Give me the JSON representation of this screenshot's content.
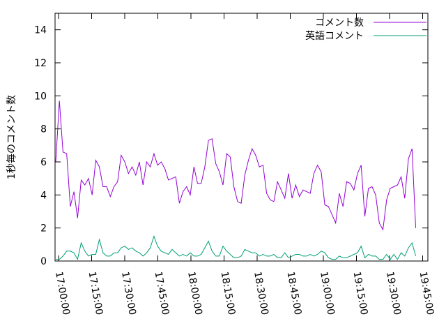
{
  "chart_data": {
    "type": "line",
    "ylabel": "1秒毎のコメント数",
    "xlabel": "",
    "ylim": [
      0,
      15
    ],
    "yticks": [
      "0",
      "2",
      "4",
      "6",
      "8",
      "10",
      "12",
      "14"
    ],
    "xticks": [
      "17:00:00",
      "17:15:00",
      "17:30:00",
      "17:45:00",
      "18:00:00",
      "18:15:00",
      "18:30:00",
      "18:45:00",
      "19:00:00",
      "19:15:00",
      "19:30:00",
      "19:45:00"
    ],
    "x_start_min": 0,
    "x_end_min": 165,
    "legend_position": "top-right",
    "series": [
      {
        "name": "コメント数",
        "color": "#9400d3",
        "values": [
          6.0,
          9.7,
          6.6,
          6.5,
          3.3,
          4.2,
          2.6,
          4.9,
          4.6,
          5.0,
          4.0,
          6.1,
          5.7,
          4.5,
          4.5,
          3.9,
          4.5,
          4.8,
          6.4,
          6.0,
          5.3,
          5.7,
          5.2,
          6.0,
          4.6,
          6.0,
          5.7,
          6.5,
          5.8,
          6.0,
          5.6,
          4.9,
          5.0,
          5.1,
          3.5,
          4.2,
          4.5,
          4.0,
          5.7,
          4.7,
          4.7,
          5.7,
          7.3,
          7.4,
          5.9,
          5.4,
          4.6,
          6.5,
          6.3,
          4.5,
          3.6,
          3.5,
          5.2,
          6.1,
          6.8,
          6.4,
          5.7,
          5.8,
          4.1,
          3.7,
          3.6,
          4.8,
          4.3,
          3.8,
          5.3,
          3.8,
          4.6,
          3.9,
          4.3,
          4.2,
          4.1,
          5.3,
          5.8,
          5.4,
          3.4,
          3.3,
          2.8,
          2.3,
          4.1,
          3.3,
          4.8,
          4.7,
          4.3,
          5.3,
          5.8,
          2.7,
          4.4,
          4.5,
          4.0,
          2.3,
          1.9,
          3.7,
          4.4,
          4.5,
          4.6,
          5.1,
          3.8,
          6.2,
          6.8,
          2.0
        ]
      },
      {
        "name": "英語コメント",
        "color": "#009e73",
        "values": [
          0.1,
          0.1,
          0.3,
          0.6,
          0.6,
          0.5,
          0.1,
          1.1,
          0.6,
          0.3,
          0.4,
          0.4,
          1.3,
          0.5,
          0.3,
          0.3,
          0.5,
          0.5,
          0.8,
          0.9,
          0.7,
          0.8,
          0.6,
          0.5,
          0.3,
          0.5,
          0.8,
          1.5,
          0.9,
          0.6,
          0.5,
          0.4,
          0.7,
          0.5,
          0.3,
          0.4,
          0.3,
          0.5,
          0.3,
          0.3,
          0.4,
          0.8,
          1.2,
          0.6,
          0.3,
          0.3,
          0.9,
          0.6,
          0.4,
          0.2,
          0.2,
          0.3,
          0.7,
          0.6,
          0.5,
          0.5,
          0.3,
          0.4,
          0.3,
          0.3,
          0.4,
          0.2,
          0.2,
          0.5,
          0.2,
          0.3,
          0.4,
          0.4,
          0.3,
          0.3,
          0.4,
          0.3,
          0.4,
          0.6,
          0.5,
          0.2,
          0.1,
          0.1,
          0.3,
          0.2,
          0.2,
          0.3,
          0.4,
          0.5,
          0.9,
          0.2,
          0.4,
          0.3,
          0.3,
          0.1,
          0.1,
          0.4,
          0.1,
          0.4,
          0.1,
          0.5,
          0.3,
          0.8,
          1.1,
          0.3
        ]
      }
    ]
  }
}
